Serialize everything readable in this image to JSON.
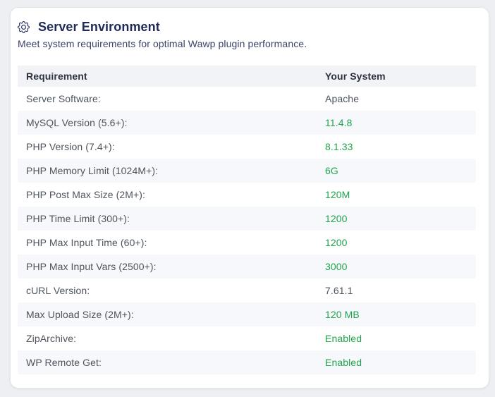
{
  "header": {
    "icon": "gear",
    "title": "Server Environment",
    "subtitle": "Meet system requirements for optimal Wawp plugin performance."
  },
  "table": {
    "columns": [
      "Requirement",
      "Your System"
    ],
    "rows": [
      {
        "label": "Server Software:",
        "value": "Apache",
        "status": "neutral"
      },
      {
        "label": "MySQL Version (5.6+):",
        "value": "11.4.8",
        "status": "ok"
      },
      {
        "label": "PHP Version (7.4+):",
        "value": "8.1.33",
        "status": "ok"
      },
      {
        "label": "PHP Memory Limit (1024M+):",
        "value": "6G",
        "status": "ok"
      },
      {
        "label": "PHP Post Max Size (2M+):",
        "value": "120M",
        "status": "ok"
      },
      {
        "label": "PHP Time Limit (300+):",
        "value": "1200",
        "status": "ok"
      },
      {
        "label": "PHP Max Input Time (60+):",
        "value": "1200",
        "status": "ok"
      },
      {
        "label": "PHP Max Input Vars (2500+):",
        "value": "3000",
        "status": "ok"
      },
      {
        "label": "cURL Version:",
        "value": "7.61.1",
        "status": "neutral"
      },
      {
        "label": "Max Upload Size (2M+):",
        "value": "120 MB",
        "status": "ok"
      },
      {
        "label": "ZipArchive:",
        "value": "Enabled",
        "status": "ok"
      },
      {
        "label": "WP Remote Get:",
        "value": "Enabled",
        "status": "ok"
      }
    ]
  },
  "colors": {
    "ok_value": "#1ea44b",
    "title_navy": "#1f2a57",
    "subtitle_navy": "#3c4469",
    "header_row_bg": "#f2f3f6",
    "alt_row_bg": "#f7f8fb"
  }
}
